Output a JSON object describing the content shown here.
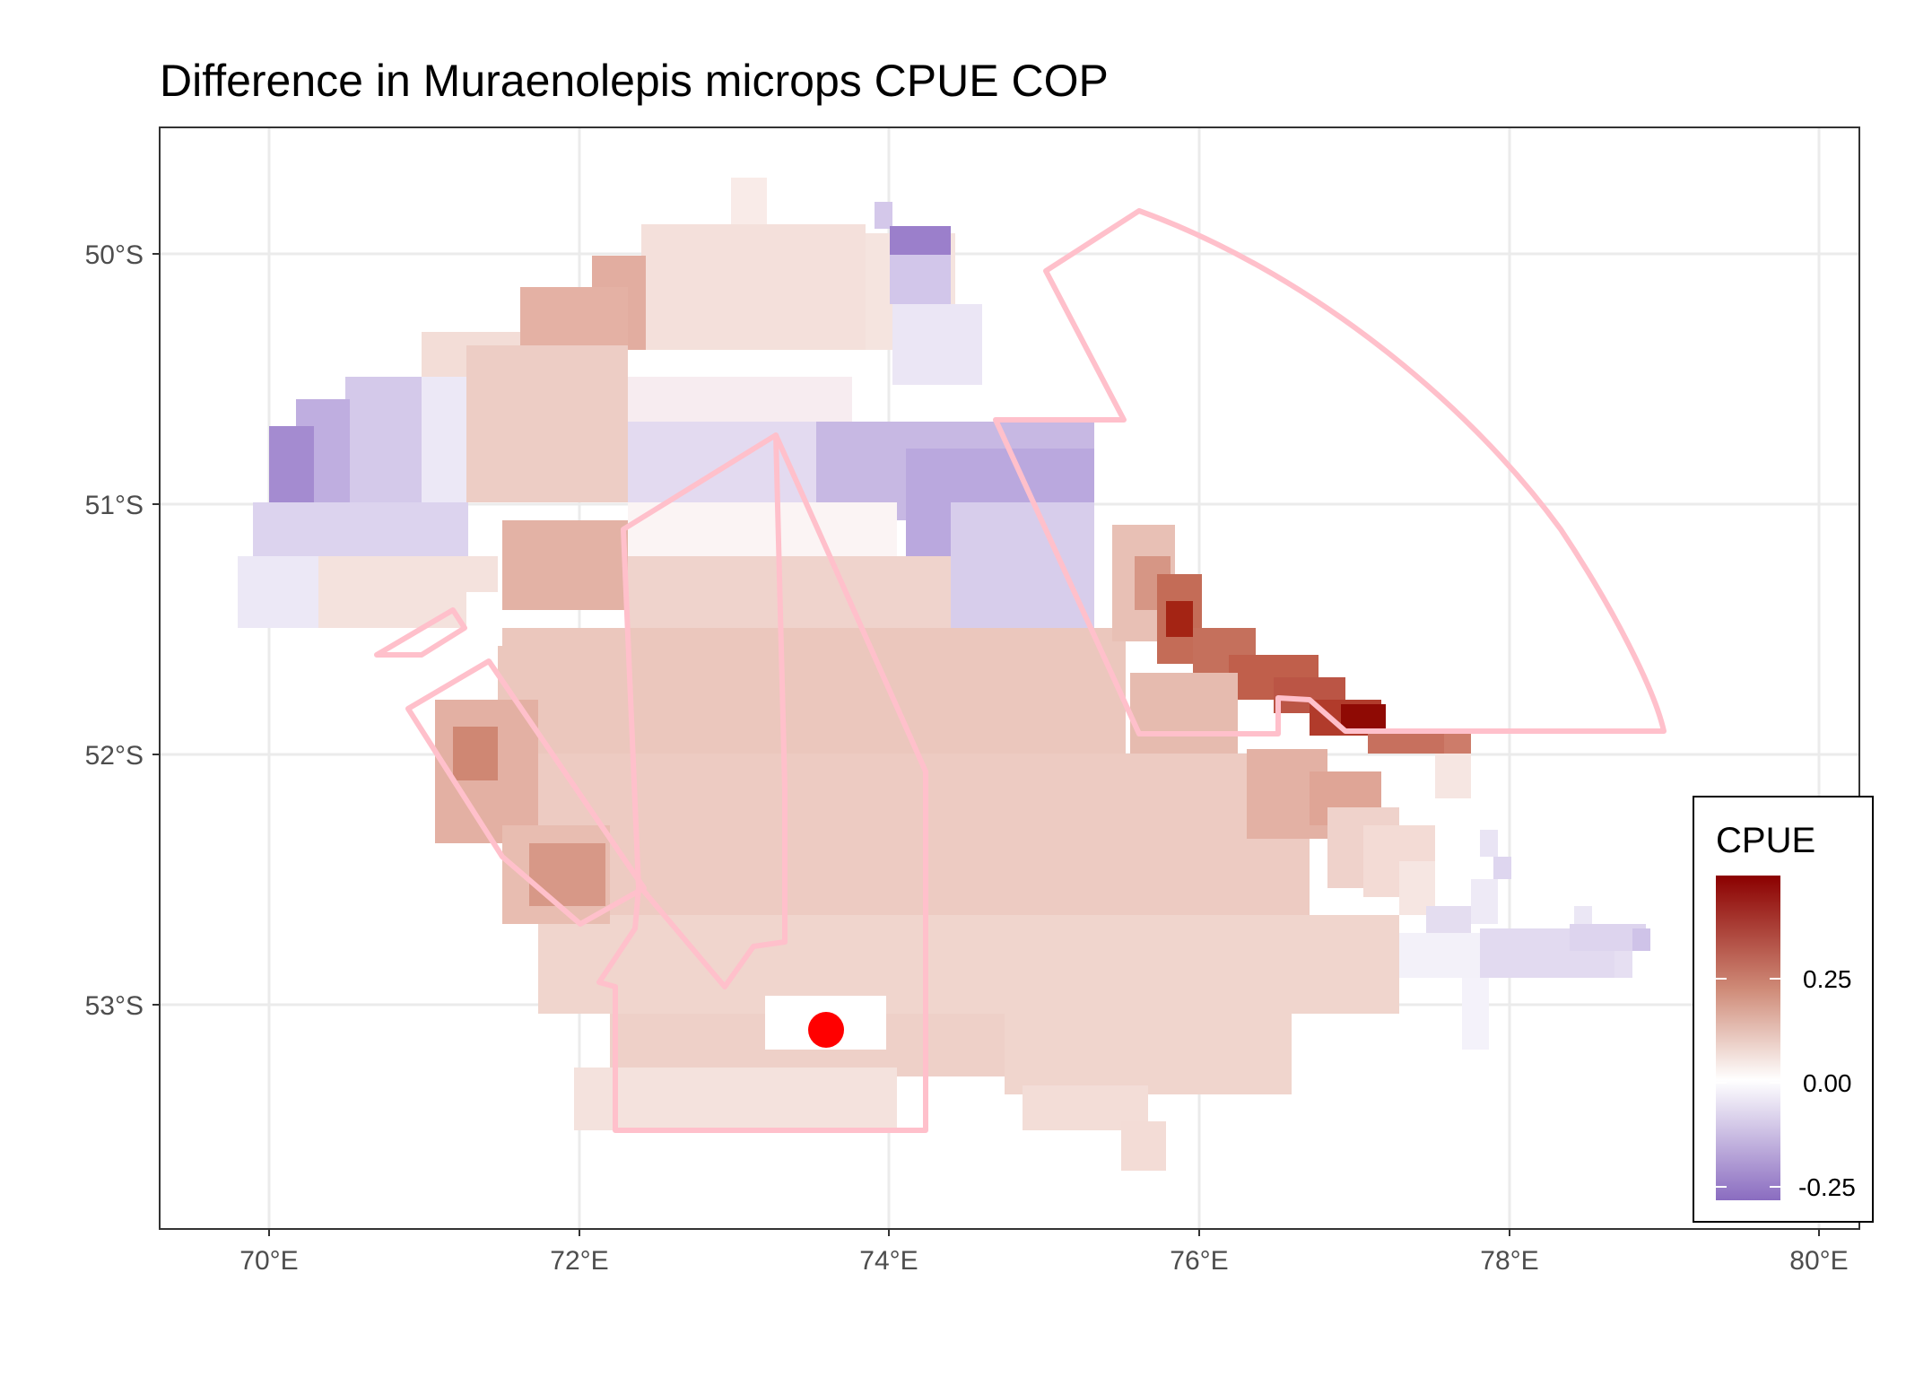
{
  "title": "Difference in  Muraenolepis microps CPUE COP",
  "map": {
    "x_ticks": [
      "70°E",
      "72°E",
      "74°E",
      "76°E",
      "78°E",
      "80°E"
    ],
    "y_ticks": [
      "50°S",
      "51°S",
      "52°S",
      "53°S"
    ],
    "grid": true,
    "lon_range": [
      69.3,
      80.3
    ],
    "lat_range": [
      -53.9,
      -49.5
    ]
  },
  "legend": {
    "title": "CPUE",
    "labels": [
      "0.25",
      "0.00",
      "-0.25"
    ],
    "position": "bottom-right"
  },
  "colors": {
    "low": "#8a6cc0",
    "mid": "#ffffff",
    "high": "#8b0000",
    "outline": "#ffc0cb",
    "marker": "#ff0000"
  },
  "marker": {
    "lon": 73.6,
    "lat": -53.1
  }
}
